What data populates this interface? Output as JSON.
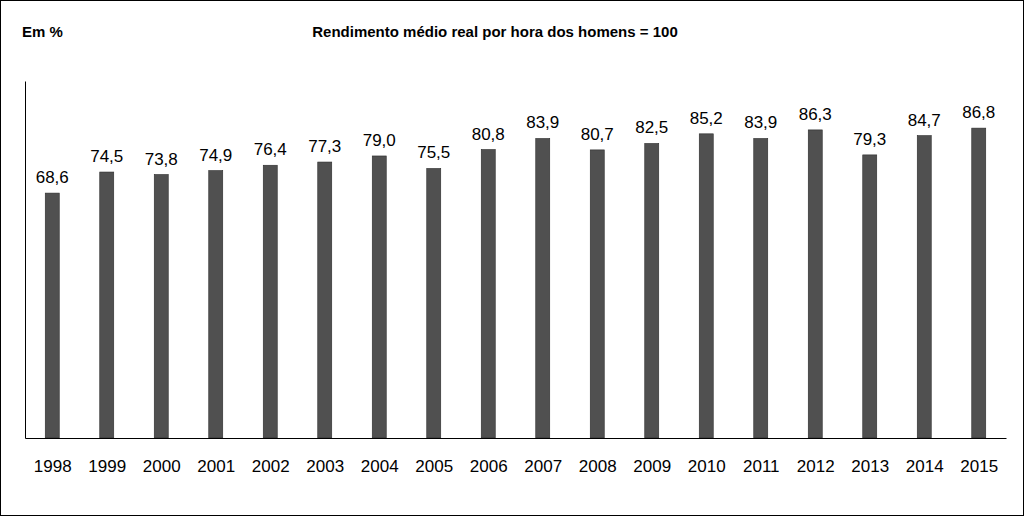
{
  "chart_data": {
    "type": "bar",
    "title": "Rendimento médio real por hora dos homens = 100",
    "ylabel": "Em %",
    "categories": [
      "1998",
      "1999",
      "2000",
      "2001",
      "2002",
      "2003",
      "2004",
      "2005",
      "2006",
      "2007",
      "2008",
      "2009",
      "2010",
      "2011",
      "2012",
      "2013",
      "2014",
      "2015"
    ],
    "values": [
      68.6,
      74.5,
      73.8,
      74.9,
      76.4,
      77.3,
      79.0,
      75.5,
      80.8,
      83.9,
      80.7,
      82.5,
      85.2,
      83.9,
      86.3,
      79.3,
      84.7,
      86.8
    ],
    "value_labels": [
      "68,6",
      "74,5",
      "73,8",
      "74,9",
      "76,4",
      "77,3",
      "79,0",
      "75,5",
      "80,8",
      "83,9",
      "80,7",
      "82,5",
      "85,2",
      "83,9",
      "86,3",
      "79,3",
      "84,7",
      "86,8"
    ],
    "color": "#505050",
    "ylim": [
      0,
      100
    ],
    "grid": false,
    "data_labels": true,
    "tick_labels": "x"
  }
}
